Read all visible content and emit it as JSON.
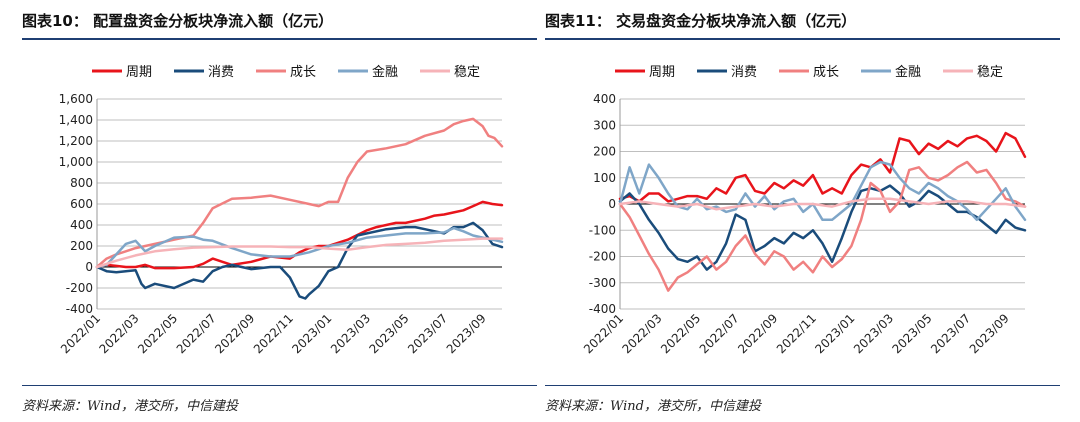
{
  "charts": [
    {
      "title": "图表10： 配置盘资金分板块净流入额（亿元）",
      "source": "资料来源：Wind，港交所，中信建投",
      "chart_data": {
        "type": "line",
        "ylim": [
          -400,
          1600
        ],
        "yticks": [
          -400,
          -200,
          0,
          200,
          400,
          600,
          800,
          1000,
          1200,
          1400,
          1600
        ],
        "ytick_labels": [
          "-400",
          "-200",
          "0",
          "200",
          "400",
          "600",
          "800",
          "1,000",
          "1,200",
          "1,400",
          "1,600"
        ],
        "xlim": [
          0,
          21
        ],
        "xticks": [
          0,
          2,
          4,
          6,
          8,
          10,
          12,
          14,
          16,
          18,
          20
        ],
        "xtick_labels": [
          "2022/01",
          "2022/03",
          "2022/05",
          "2022/07",
          "2022/09",
          "2022/11",
          "2023/01",
          "2023/03",
          "2023/05",
          "2023/07",
          "2023/09"
        ],
        "grid": true,
        "legend_position": "top",
        "series": [
          {
            "name": "周期",
            "color": "#e8141b",
            "x": [
              0,
              0.5,
              1,
              1.5,
              2,
              2.5,
              3,
              4,
              5,
              5.5,
              6,
              6.5,
              7,
              8,
              9,
              10,
              10.5,
              11,
              11.5,
              12,
              13,
              14,
              14.5,
              15,
              15.5,
              16,
              17,
              17.5,
              18,
              18.5,
              19,
              19.5,
              20,
              20.5,
              21
            ],
            "y": [
              0,
              20,
              10,
              0,
              0,
              20,
              -10,
              -10,
              0,
              30,
              80,
              50,
              20,
              50,
              100,
              80,
              140,
              180,
              200,
              200,
              260,
              350,
              380,
              400,
              420,
              420,
              460,
              490,
              500,
              520,
              540,
              580,
              620,
              600,
              590
            ]
          },
          {
            "name": "消费",
            "color": "#1a4c7b",
            "x": [
              0,
              0.5,
              1,
              1.5,
              2,
              2.3,
              2.5,
              3,
              4,
              5,
              5.5,
              6,
              6.5,
              7,
              8,
              9,
              9.5,
              10,
              10.5,
              10.8,
              11,
              11.5,
              12,
              12.5,
              13,
              13.5,
              14,
              15,
              16,
              16.5,
              17,
              18,
              18.5,
              19,
              19.5,
              20,
              20.5,
              21
            ],
            "y": [
              0,
              -40,
              -50,
              -40,
              -30,
              -160,
              -200,
              -160,
              -200,
              -120,
              -140,
              -40,
              0,
              20,
              -20,
              0,
              0,
              -100,
              -280,
              -300,
              -260,
              -180,
              -40,
              0,
              180,
              300,
              320,
              360,
              380,
              380,
              360,
              320,
              380,
              380,
              420,
              350,
              220,
              190
            ]
          },
          {
            "name": "成长",
            "color": "#f08080",
            "x": [
              0,
              0.5,
              1,
              1.5,
              2,
              3,
              4,
              5,
              5.5,
              6,
              7,
              8,
              9,
              10,
              11,
              11.5,
              12,
              12.5,
              13,
              13.5,
              14,
              15,
              16,
              17,
              18,
              18.5,
              19,
              19.5,
              20,
              20.3,
              20.6,
              21
            ],
            "y": [
              0,
              80,
              120,
              150,
              180,
              220,
              260,
              300,
              420,
              560,
              650,
              660,
              680,
              640,
              600,
              580,
              620,
              620,
              850,
              1000,
              1100,
              1130,
              1170,
              1250,
              1300,
              1360,
              1390,
              1410,
              1340,
              1250,
              1230,
              1150
            ]
          },
          {
            "name": "金融",
            "color": "#7fa6c8",
            "x": [
              0,
              0.5,
              1,
              1.5,
              2,
              2.5,
              3,
              4,
              5,
              5.5,
              6,
              7,
              8,
              9,
              10,
              11,
              12,
              13,
              14,
              15,
              16,
              17,
              18,
              18.5,
              19,
              19.5,
              20,
              20.5,
              21
            ],
            "y": [
              0,
              20,
              120,
              220,
              250,
              150,
              200,
              280,
              290,
              260,
              250,
              180,
              120,
              100,
              100,
              140,
              200,
              230,
              280,
              300,
              320,
              320,
              330,
              370,
              340,
              300,
              280,
              260,
              240
            ]
          },
          {
            "name": "稳定",
            "color": "#f6b3b8",
            "x": [
              0,
              1,
              2,
              3,
              4,
              5,
              6,
              7,
              8,
              9,
              10,
              11,
              12,
              13,
              14,
              15,
              16,
              17,
              18,
              19,
              20,
              21
            ],
            "y": [
              0,
              60,
              110,
              150,
              170,
              185,
              190,
              195,
              195,
              195,
              190,
              190,
              175,
              165,
              190,
              210,
              220,
              230,
              250,
              260,
              270,
              270
            ]
          }
        ]
      }
    },
    {
      "title": "图表11： 交易盘资金分板块净流入额（亿元）",
      "source": "资料来源：Wind，港交所，中信建投",
      "chart_data": {
        "type": "line",
        "ylim": [
          -400,
          400
        ],
        "yticks": [
          -400,
          -300,
          -200,
          -100,
          0,
          100,
          200,
          300,
          400
        ],
        "ytick_labels": [
          "-400",
          "-300",
          "-200",
          "-100",
          "0",
          "100",
          "200",
          "300",
          "400"
        ],
        "xlim": [
          0,
          21
        ],
        "xticks": [
          0,
          2,
          4,
          6,
          8,
          10,
          12,
          14,
          16,
          18,
          20
        ],
        "xtick_labels": [
          "2022/01",
          "2022/03",
          "2022/05",
          "2022/07",
          "2022/09",
          "2022/11",
          "2023/01",
          "2023/03",
          "2023/05",
          "2023/07",
          "2023/09"
        ],
        "grid": true,
        "legend_position": "top",
        "series": [
          {
            "name": "周期",
            "color": "#e8141b",
            "x": [
              0,
              0.5,
              1,
              1.5,
              2,
              2.5,
              3,
              3.5,
              4,
              4.5,
              5,
              5.5,
              6,
              6.5,
              7,
              7.5,
              8,
              8.5,
              9,
              9.5,
              10,
              10.5,
              11,
              11.5,
              12,
              12.5,
              13,
              13.5,
              14,
              14.5,
              15,
              15.5,
              16,
              16.5,
              17,
              17.5,
              18,
              18.5,
              19,
              19.5,
              20,
              20.5,
              21
            ],
            "y": [
              20,
              30,
              10,
              40,
              40,
              10,
              20,
              30,
              30,
              20,
              60,
              40,
              100,
              110,
              50,
              40,
              80,
              60,
              90,
              70,
              110,
              40,
              60,
              40,
              110,
              150,
              140,
              170,
              120,
              250,
              240,
              190,
              230,
              210,
              240,
              220,
              250,
              260,
              240,
              200,
              270,
              250,
              180
            ]
          },
          {
            "name": "消费",
            "color": "#1a4c7b",
            "x": [
              0,
              0.5,
              1,
              1.5,
              2,
              2.5,
              3,
              3.5,
              4,
              4.5,
              5,
              5.5,
              6,
              6.5,
              7,
              7.5,
              8,
              8.5,
              9,
              9.5,
              10,
              10.5,
              11,
              11.5,
              12,
              12.5,
              13,
              13.5,
              14,
              14.5,
              15,
              15.5,
              16,
              16.5,
              17,
              17.5,
              18,
              18.5,
              19,
              19.5,
              20,
              20.5,
              21
            ],
            "y": [
              10,
              40,
              0,
              -60,
              -110,
              -170,
              -210,
              -220,
              -200,
              -250,
              -220,
              -150,
              -40,
              -60,
              -180,
              -160,
              -130,
              -150,
              -110,
              -130,
              -100,
              -150,
              -220,
              -130,
              -30,
              50,
              60,
              50,
              70,
              40,
              -10,
              10,
              50,
              30,
              0,
              -30,
              -30,
              -50,
              -80,
              -110,
              -60,
              -90,
              -100
            ]
          },
          {
            "name": "成长",
            "color": "#f08080",
            "x": [
              0,
              0.5,
              1,
              1.5,
              2,
              2.5,
              3,
              3.5,
              4,
              4.5,
              5,
              5.5,
              6,
              6.5,
              7,
              7.5,
              8,
              8.5,
              9,
              9.5,
              10,
              10.5,
              11,
              11.5,
              12,
              12.5,
              13,
              13.5,
              14,
              14.5,
              15,
              15.5,
              16,
              16.5,
              17,
              17.5,
              18,
              18.5,
              19,
              19.5,
              20,
              20.5,
              21
            ],
            "y": [
              0,
              -50,
              -120,
              -190,
              -250,
              -330,
              -280,
              -260,
              -230,
              -200,
              -250,
              -220,
              -160,
              -120,
              -190,
              -230,
              -180,
              -200,
              -250,
              -220,
              -260,
              -200,
              -240,
              -210,
              -160,
              -60,
              80,
              50,
              -30,
              10,
              130,
              140,
              100,
              90,
              110,
              140,
              160,
              120,
              130,
              80,
              20,
              10,
              -10
            ]
          },
          {
            "name": "金融",
            "color": "#7fa6c8",
            "x": [
              0,
              0.5,
              1,
              1.5,
              2,
              2.5,
              3,
              3.5,
              4,
              4.5,
              5,
              5.5,
              6,
              6.5,
              7,
              7.5,
              8,
              8.5,
              9,
              9.5,
              10,
              10.5,
              11,
              11.5,
              12,
              12.5,
              13,
              13.5,
              14,
              14.5,
              15,
              15.5,
              16,
              16.5,
              17,
              17.5,
              18,
              18.5,
              19,
              19.5,
              20,
              20.5,
              21
            ],
            "y": [
              0,
              140,
              40,
              150,
              100,
              40,
              -10,
              -20,
              20,
              -20,
              -10,
              -30,
              -20,
              40,
              -10,
              30,
              -20,
              10,
              20,
              -30,
              0,
              -60,
              -60,
              -30,
              0,
              70,
              140,
              160,
              150,
              100,
              60,
              40,
              80,
              60,
              30,
              10,
              -20,
              -60,
              -20,
              20,
              60,
              -10,
              -60
            ]
          },
          {
            "name": "稳定",
            "color": "#f6b3b8",
            "x": [
              0,
              1,
              2,
              3,
              4,
              5,
              6,
              7,
              8,
              9,
              10,
              11,
              12,
              13,
              14,
              15,
              16,
              17,
              18,
              19,
              20,
              21
            ],
            "y": [
              0,
              10,
              0,
              -10,
              0,
              -20,
              -10,
              0,
              -10,
              0,
              0,
              -10,
              10,
              20,
              20,
              10,
              0,
              10,
              10,
              0,
              0,
              -10
            ]
          }
        ]
      }
    }
  ]
}
